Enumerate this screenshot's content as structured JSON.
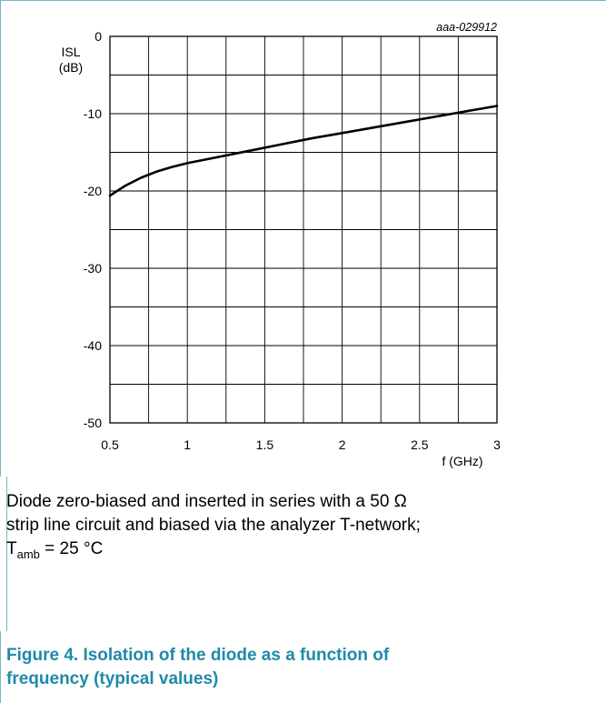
{
  "chart_data": {
    "type": "line",
    "id_label": "aaa-029912",
    "ylabel_line1": "ISL",
    "ylabel_line2": "(dB)",
    "xlabel": "f (GHz)",
    "xlim": [
      0.5,
      3
    ],
    "ylim": [
      -50,
      0
    ],
    "x_ticks": [
      "0.5",
      "1",
      "1.5",
      "2",
      "2.5",
      "3"
    ],
    "y_ticks": [
      "0",
      "-10",
      "-20",
      "-30",
      "-40",
      "-50"
    ],
    "grid": true,
    "series": [
      {
        "x": [
          0.5,
          0.6,
          0.7,
          0.8,
          0.9,
          1.0,
          1.2,
          1.4,
          1.6,
          1.8,
          2.0,
          2.2,
          2.4,
          2.6,
          2.8,
          3.0
        ],
        "y": [
          -20.6,
          -19.3,
          -18.3,
          -17.5,
          -16.9,
          -16.4,
          -15.6,
          -14.8,
          -14.0,
          -13.2,
          -12.5,
          -11.8,
          -11.1,
          -10.4,
          -9.7,
          -9.0
        ]
      }
    ]
  },
  "caption": {
    "line1": "Diode zero-biased and inserted in series with a 50 Ω",
    "line2": "strip line circuit and biased via the analyzer T-network;",
    "tamb_T": "T",
    "tamb_sub": "amb",
    "tamb_rest": " = 25 °C"
  },
  "figure": {
    "title_line1": "Figure 4.  Isolation of the diode as a function of",
    "title_line2": "frequency (typical values)"
  }
}
